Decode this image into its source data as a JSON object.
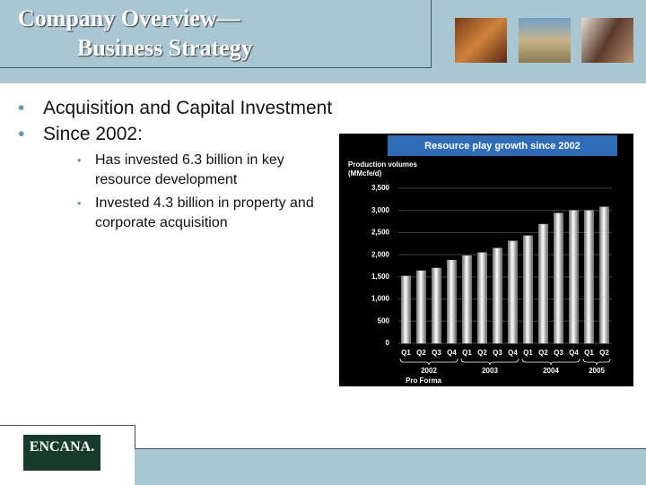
{
  "header": {
    "title_lines": [
      "Company Overview—",
      "Business Strategy"
    ]
  },
  "bullets": [
    {
      "text": "Acquisition and Capital Investment"
    },
    {
      "text": "Since 2002:",
      "sub": [
        "Has invested 6.3 billion in key resource development",
        "Invested 4.3 billion in property and corporate acquisition"
      ]
    }
  ],
  "chart_data": {
    "type": "bar",
    "title": "Resource play growth since 2002",
    "y_label_lines": [
      "Production volumes",
      "(MMcfe/d)"
    ],
    "categories": [
      "Q1",
      "Q2",
      "Q3",
      "Q4",
      "Q1",
      "Q2",
      "Q3",
      "Q4",
      "Q1",
      "Q2",
      "Q3",
      "Q4",
      "Q1",
      "Q2"
    ],
    "values": [
      1520,
      1640,
      1700,
      1880,
      1980,
      2050,
      2150,
      2310,
      2430,
      2690,
      2940,
      3000,
      3000,
      3080
    ],
    "year_groups": [
      "2002",
      "2003",
      "2004",
      "2005"
    ],
    "note": "Pro Forma",
    "ylim": [
      0,
      3500
    ],
    "yticks": [
      0,
      500,
      {
        "value": 1000,
        "label": "1,000"
      },
      {
        "value": 1500,
        "label": "1,500"
      },
      {
        "value": 2000,
        "label": "2,000"
      },
      {
        "value": 2500,
        "label": "2,500"
      },
      {
        "value": 3000,
        "label": "3,000"
      },
      {
        "value": 3500,
        "label": "3,500"
      }
    ],
    "grid": true,
    "color": "#d8d8d8"
  },
  "logo": {
    "text": "ENCANA."
  }
}
